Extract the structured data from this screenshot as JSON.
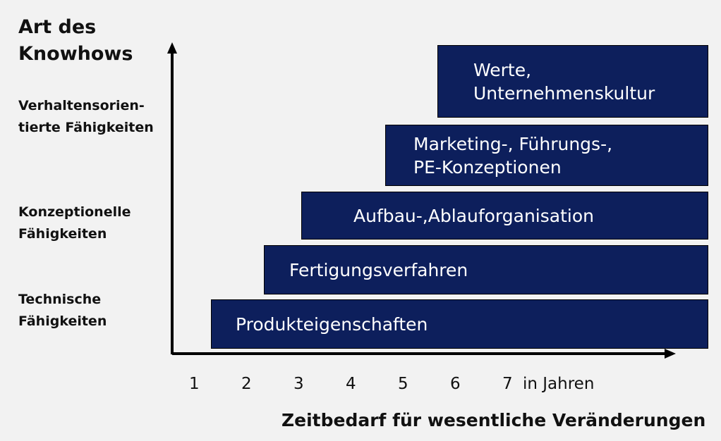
{
  "y_axis": {
    "title": "Art des Knowhows",
    "categories": [
      "Verhaltensorien-\ntierte Fähigkeiten",
      "Konzeptionelle\nFähigkeiten",
      "Technische\nFähigkeiten"
    ]
  },
  "bars": [
    {
      "label": "Produkteigenschaften",
      "start_year": 1.3
    },
    {
      "label": "Fertigungsverfahren",
      "start_year": 2.3
    },
    {
      "label": "Aufbau-,Ablauforganisation",
      "start_year": 3.0
    },
    {
      "label": "Marketing-, Führungs-,\nPE-Konzeptionen",
      "start_year": 4.6
    },
    {
      "label": "Werte,\nUnternehmenskultur",
      "start_year": 5.6
    }
  ],
  "x_axis": {
    "ticks": [
      "1",
      "2",
      "3",
      "4",
      "5",
      "6",
      "7"
    ],
    "unit": "in Jahren",
    "title": "Zeitbedarf für wesentliche Veränderungen"
  },
  "colors": {
    "bar_fill": "#0d1f5c",
    "bar_text": "#ffffff",
    "axis": "#000000"
  }
}
